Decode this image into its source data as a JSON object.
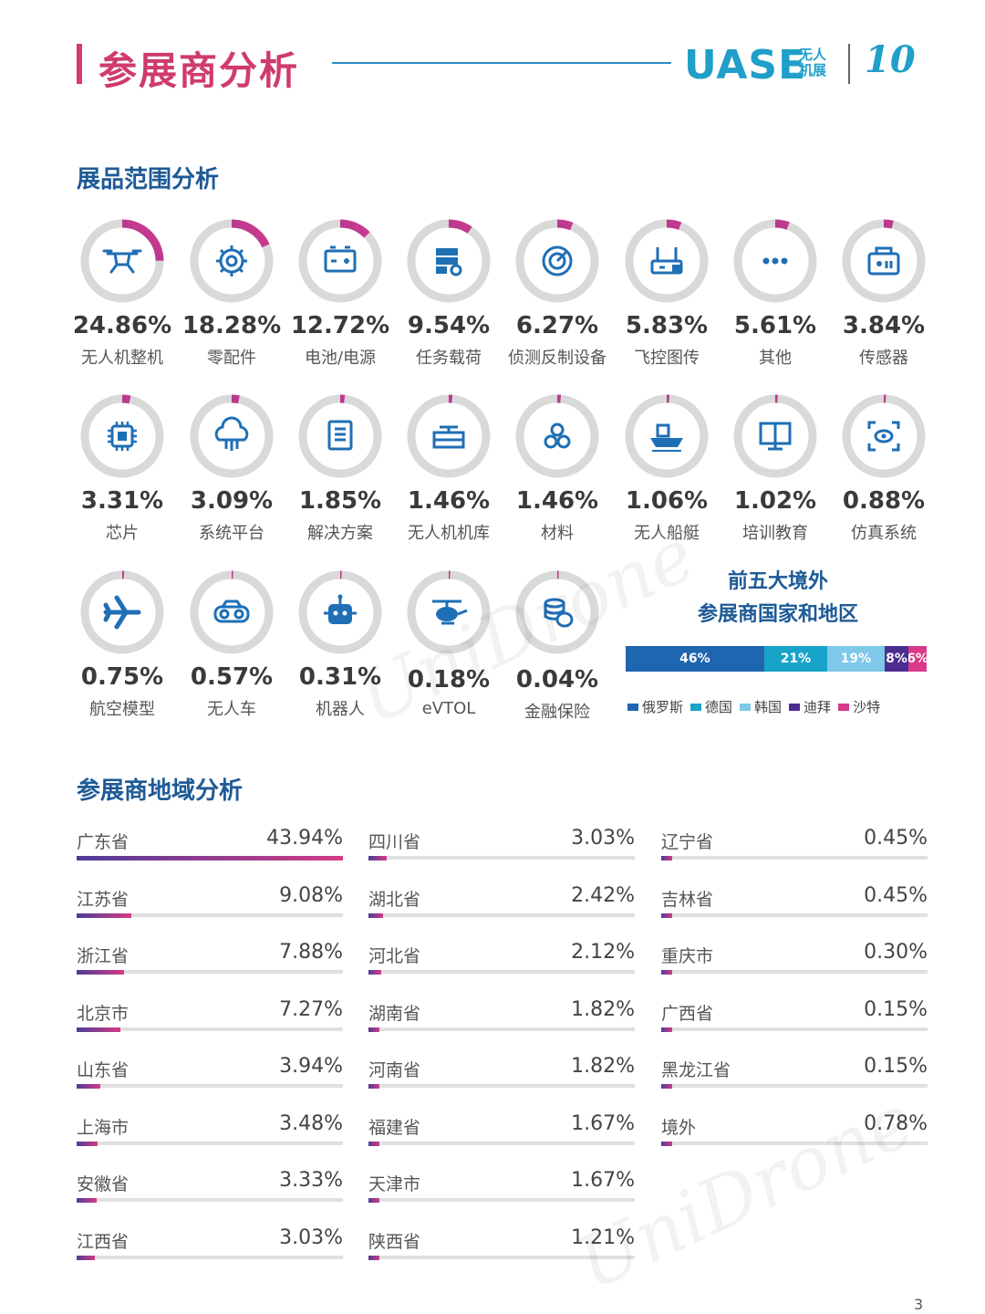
{
  "header": {
    "title": "参展商分析",
    "logo_text": "UASE",
    "logo_small": "无人机展",
    "logo_anniv": "10",
    "page_number": "3"
  },
  "sections": {
    "exhibit_scope": "展品范围分析",
    "region": "参展商地域分析"
  },
  "colors": {
    "title": "#cf3b6c",
    "section": "#1e5a96",
    "icon": "#1f6fb5",
    "donut_track": "#d9d9d9",
    "donut_start": "#5a3fa0",
    "donut_end": "#d8398a"
  },
  "chart_data": [
    {
      "type": "pie",
      "title": "展品范围分析",
      "items": [
        {
          "label": "无人机整机",
          "value": 24.86,
          "value_text": "24.86%",
          "icon": "drone-icon"
        },
        {
          "label": "零配件",
          "value": 18.28,
          "value_text": "18.28%",
          "icon": "gear-icon"
        },
        {
          "label": "电池/电源",
          "value": 12.72,
          "value_text": "12.72%",
          "icon": "battery-icon"
        },
        {
          "label": "任务载荷",
          "value": 9.54,
          "value_text": "9.54%",
          "icon": "payload-icon"
        },
        {
          "label": "侦测反制设备",
          "value": 6.27,
          "value_text": "6.27%",
          "icon": "radar-icon"
        },
        {
          "label": "飞控图传",
          "value": 5.83,
          "value_text": "5.83%",
          "icon": "router-icon"
        },
        {
          "label": "其他",
          "value": 5.61,
          "value_text": "5.61%",
          "icon": "more-icon"
        },
        {
          "label": "传感器",
          "value": 3.84,
          "value_text": "3.84%",
          "icon": "sensor-icon"
        },
        {
          "label": "芯片",
          "value": 3.31,
          "value_text": "3.31%",
          "icon": "chip-icon"
        },
        {
          "label": "系统平台",
          "value": 3.09,
          "value_text": "3.09%",
          "icon": "cloud-icon"
        },
        {
          "label": "解决方案",
          "value": 1.85,
          "value_text": "1.85%",
          "icon": "document-icon"
        },
        {
          "label": "无人机机库",
          "value": 1.46,
          "value_text": "1.46%",
          "icon": "hangar-icon"
        },
        {
          "label": "材料",
          "value": 1.46,
          "value_text": "1.46%",
          "icon": "material-icon"
        },
        {
          "label": "无人船艇",
          "value": 1.06,
          "value_text": "1.06%",
          "icon": "boat-icon"
        },
        {
          "label": "培训教育",
          "value": 1.02,
          "value_text": "1.02%",
          "icon": "book-icon"
        },
        {
          "label": "仿真系统",
          "value": 0.88,
          "value_text": "0.88%",
          "icon": "eye-scan-icon"
        },
        {
          "label": "航空模型",
          "value": 0.75,
          "value_text": "0.75%",
          "icon": "airplane-icon"
        },
        {
          "label": "无人车",
          "value": 0.57,
          "value_text": "0.57%",
          "icon": "car-icon"
        },
        {
          "label": "机器人",
          "value": 0.31,
          "value_text": "0.31%",
          "icon": "robot-icon"
        },
        {
          "label": "eVTOL",
          "value": 0.18,
          "value_text": "0.18%",
          "icon": "helicopter-icon"
        },
        {
          "label": "金融保险",
          "value": 0.04,
          "value_text": "0.04%",
          "icon": "coins-icon"
        }
      ]
    },
    {
      "type": "bar",
      "orientation": "stacked-horizontal",
      "title": "前五大境外参展商国家和地区",
      "title_line1": "前五大境外",
      "title_line2": "参展商国家和地区",
      "series": [
        {
          "name": "俄罗斯",
          "value": 46,
          "value_text": "46%",
          "color": "#1f66b0"
        },
        {
          "name": "德国",
          "value": 21,
          "value_text": "21%",
          "color": "#1aa3c9"
        },
        {
          "name": "韩国",
          "value": 19,
          "value_text": "19%",
          "color": "#7ec8ea"
        },
        {
          "name": "迪拜",
          "value": 8,
          "value_text": "8%",
          "color": "#4b2d8f"
        },
        {
          "name": "沙特",
          "value": 6,
          "value_text": "6%",
          "color": "#d8398a"
        }
      ]
    },
    {
      "type": "bar",
      "orientation": "horizontal",
      "title": "参展商地域分析",
      "max_value": 43.94,
      "columns": [
        [
          {
            "name": "广东省",
            "value": 43.94,
            "value_text": "43.94%"
          },
          {
            "name": "江苏省",
            "value": 9.08,
            "value_text": "9.08%"
          },
          {
            "name": "浙江省",
            "value": 7.88,
            "value_text": "7.88%"
          },
          {
            "name": "北京市",
            "value": 7.27,
            "value_text": "7.27%"
          },
          {
            "name": "山东省",
            "value": 3.94,
            "value_text": "3.94%"
          },
          {
            "name": "上海市",
            "value": 3.48,
            "value_text": "3.48%"
          },
          {
            "name": "安徽省",
            "value": 3.33,
            "value_text": "3.33%"
          },
          {
            "name": "江西省",
            "value": 3.03,
            "value_text": "3.03%"
          }
        ],
        [
          {
            "name": "四川省",
            "value": 3.03,
            "value_text": "3.03%"
          },
          {
            "name": "湖北省",
            "value": 2.42,
            "value_text": "2.42%"
          },
          {
            "name": "河北省",
            "value": 2.12,
            "value_text": "2.12%"
          },
          {
            "name": "湖南省",
            "value": 1.82,
            "value_text": "1.82%"
          },
          {
            "name": "河南省",
            "value": 1.82,
            "value_text": "1.82%"
          },
          {
            "name": "福建省",
            "value": 1.67,
            "value_text": "1.67%"
          },
          {
            "name": "天津市",
            "value": 1.67,
            "value_text": "1.67%"
          },
          {
            "name": "陕西省",
            "value": 1.21,
            "value_text": "1.21%"
          }
        ],
        [
          {
            "name": "辽宁省",
            "value": 0.45,
            "value_text": "0.45%"
          },
          {
            "name": "吉林省",
            "value": 0.45,
            "value_text": "0.45%"
          },
          {
            "name": "重庆市",
            "value": 0.3,
            "value_text": "0.30%"
          },
          {
            "name": "广西省",
            "value": 0.15,
            "value_text": "0.15%"
          },
          {
            "name": "黑龙江省",
            "value": 0.15,
            "value_text": "0.15%"
          },
          {
            "name": "境外",
            "value": 0.78,
            "value_text": "0.78%"
          }
        ]
      ]
    }
  ]
}
